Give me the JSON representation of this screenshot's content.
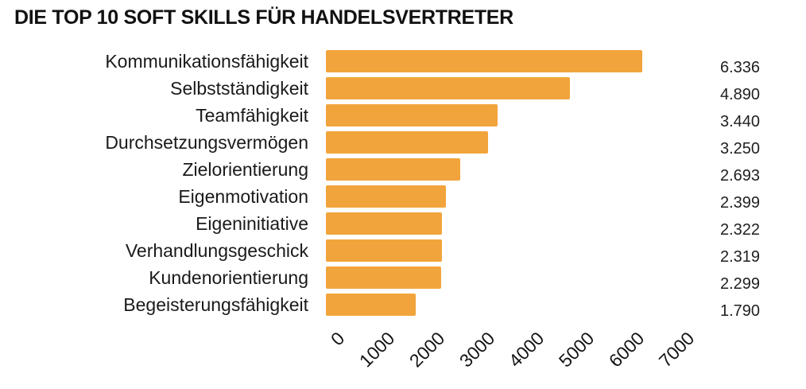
{
  "title": "DIE TOP 10 SOFT SKILLS FÜR HANDELSVERTRETER",
  "colors": {
    "bar": "#F2A43C",
    "title_text": "#111111",
    "label_text": "#1a1a1a",
    "background": "#ffffff"
  },
  "chart_data": {
    "type": "bar",
    "orientation": "horizontal",
    "title": "DIE TOP 10 SOFT SKILLS FÜR HANDELSVERTRETER",
    "categories": [
      "Kommunikationsfähigkeit",
      "Selbstständigkeit",
      "Teamfähigkeit",
      "Durchsetzungsvermögen",
      "Zielorientierung",
      "Eigenmotivation",
      "Eigeninitiative",
      "Verhandlungsgeschick",
      "Kundenorientierung",
      "Begeisterungsfähigkeit"
    ],
    "values": [
      6336,
      4890,
      3440,
      3250,
      2693,
      2399,
      2322,
      2319,
      2299,
      1790
    ],
    "value_labels": [
      "6.336",
      "4.890",
      "3.440",
      "3.250",
      "2.693",
      "2.399",
      "2.322",
      "2.319",
      "2.299",
      "1.790"
    ],
    "x_ticks": [
      "0",
      "1000",
      "2000",
      "3000",
      "4000",
      "5000",
      "6000",
      "7000"
    ],
    "xlim": [
      0,
      7000
    ],
    "xlabel": "",
    "ylabel": "",
    "grid": false,
    "legend": false,
    "x_tick_rotation_deg": -45
  }
}
